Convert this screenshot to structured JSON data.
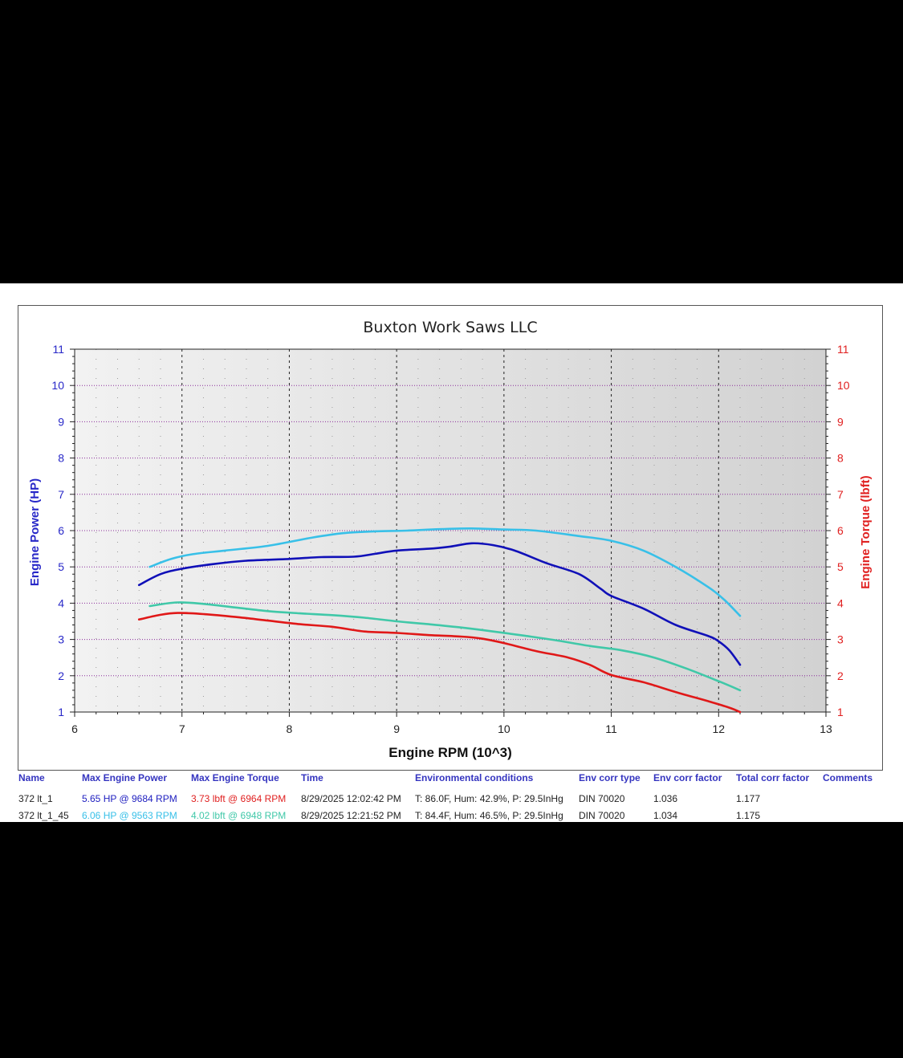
{
  "chart_data": {
    "type": "line",
    "title": "Buxton Work Saws LLC",
    "xlabel": "Engine RPM (10^3)",
    "ylabel_left": "Engine Power (HP)",
    "ylabel_right": "Engine Torque (lbft)",
    "xlim": [
      6,
      13
    ],
    "ylim": [
      1,
      11
    ],
    "x_ticks": [
      "6",
      "7",
      "8",
      "9",
      "10",
      "11",
      "12",
      "13"
    ],
    "y_ticks": [
      "1",
      "2",
      "3",
      "4",
      "5",
      "6",
      "7",
      "8",
      "9",
      "10",
      "11"
    ],
    "grid": true,
    "colors": {
      "left_axis": "#2828c8",
      "right_axis": "#e02020"
    },
    "series": [
      {
        "name": "372 lt_1 power",
        "axis": "left",
        "color": "#1010b8",
        "x": [
          6.6,
          6.8,
          7.0,
          7.3,
          7.6,
          8.0,
          8.3,
          8.6,
          8.8,
          9.0,
          9.3,
          9.5,
          9.7,
          9.9,
          10.1,
          10.4,
          10.7,
          10.9,
          11.0,
          11.3,
          11.6,
          11.9,
          12.0,
          12.1,
          12.2
        ],
        "y": [
          4.5,
          4.8,
          4.95,
          5.08,
          5.17,
          5.22,
          5.27,
          5.28,
          5.36,
          5.45,
          5.5,
          5.56,
          5.65,
          5.6,
          5.45,
          5.1,
          4.8,
          4.4,
          4.2,
          3.85,
          3.4,
          3.1,
          2.95,
          2.7,
          2.3
        ]
      },
      {
        "name": "372 lt_1 45 power",
        "axis": "left",
        "color": "#38c0e8",
        "x": [
          6.7,
          6.9,
          7.1,
          7.4,
          7.8,
          8.2,
          8.5,
          8.8,
          9.1,
          9.4,
          9.7,
          10.0,
          10.3,
          10.7,
          11.0,
          11.3,
          11.6,
          11.9,
          12.05,
          12.2
        ],
        "y": [
          5.0,
          5.22,
          5.35,
          5.45,
          5.58,
          5.8,
          5.93,
          5.98,
          6.0,
          6.04,
          6.06,
          6.03,
          6.0,
          5.85,
          5.72,
          5.45,
          5.0,
          4.45,
          4.1,
          3.65
        ]
      },
      {
        "name": "372 lt_1 torque",
        "axis": "right",
        "color": "#e01818",
        "x": [
          6.6,
          6.8,
          6.96,
          7.2,
          7.5,
          7.8,
          8.1,
          8.4,
          8.7,
          9.0,
          9.3,
          9.6,
          9.8,
          10.0,
          10.3,
          10.6,
          10.8,
          11.0,
          11.3,
          11.6,
          11.9,
          12.1,
          12.2
        ],
        "y": [
          3.55,
          3.68,
          3.73,
          3.7,
          3.62,
          3.52,
          3.42,
          3.35,
          3.22,
          3.18,
          3.12,
          3.08,
          3.02,
          2.9,
          2.68,
          2.5,
          2.3,
          2.02,
          1.82,
          1.55,
          1.3,
          1.12,
          1.0
        ]
      },
      {
        "name": "372 lt_1 45 torque",
        "axis": "right",
        "color": "#40c8a8",
        "x": [
          6.7,
          6.95,
          7.2,
          7.5,
          7.8,
          8.1,
          8.4,
          8.7,
          9.0,
          9.3,
          9.6,
          9.9,
          10.2,
          10.5,
          10.8,
          11.1,
          11.4,
          11.7,
          12.0,
          12.2
        ],
        "y": [
          3.92,
          4.02,
          3.98,
          3.88,
          3.78,
          3.72,
          3.67,
          3.6,
          3.5,
          3.42,
          3.33,
          3.22,
          3.1,
          2.97,
          2.82,
          2.7,
          2.5,
          2.2,
          1.85,
          1.6
        ]
      }
    ]
  },
  "table": {
    "headers": {
      "name": "Name",
      "max_power": "Max Engine Power",
      "max_torque": "Max Engine Torque",
      "time": "Time",
      "env": "Environmental conditions",
      "env_type": "Env corr type",
      "env_factor": "Env corr factor",
      "total_factor": "Total corr factor",
      "comments": "Comments"
    },
    "rows": [
      {
        "name": "372 lt_1",
        "max_power": "5.65 HP @ 9684 RPM",
        "max_torque": "3.73 lbft @ 6964 RPM",
        "time": "8/29/2025 12:02:42 PM",
        "env": "T: 86.0F, Hum: 42.9%, P: 29.5InHg",
        "env_type": "DIN 70020",
        "env_factor": "1.036",
        "total_factor": "1.177",
        "power_color": "#2020c0",
        "torque_color": "#e02020"
      },
      {
        "name": "372 lt_1_45",
        "max_power": "6.06 HP @ 9563 RPM",
        "max_torque": "4.02 lbft @ 6948 RPM",
        "time": "8/29/2025 12:21:52 PM",
        "env": "T: 84.4F, Hum: 46.5%, P: 29.5InHg",
        "env_type": "DIN 70020",
        "env_factor": "1.034",
        "total_factor": "1.175",
        "power_color": "#38c0e8",
        "torque_color": "#40c8a8"
      }
    ]
  }
}
